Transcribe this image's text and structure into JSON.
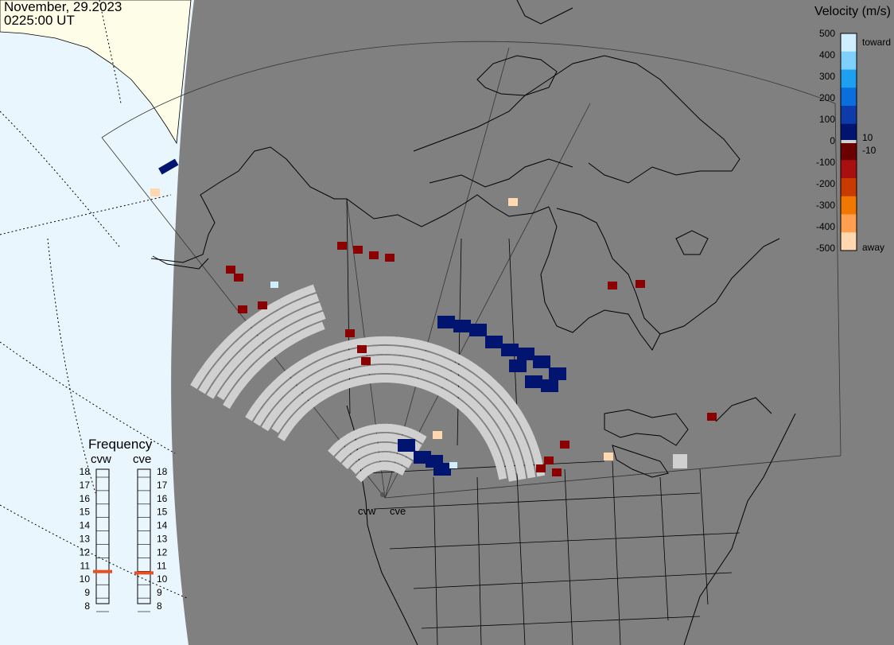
{
  "header": {
    "date": "November, 29.2023",
    "time": "0225:00 UT"
  },
  "colors": {
    "background": "#808080",
    "ocean": "#eaf6fd",
    "land_outside": "#fefee8",
    "ground_scatter": "#d0d0d0",
    "accent_marker": "#e85020"
  },
  "legend": {
    "title": "Velocity (m/s)",
    "ticks": [
      "500",
      "400",
      "300",
      "200",
      "100",
      "0",
      "-100",
      "-200",
      "-300",
      "-400",
      "-500"
    ],
    "label_toward": "toward",
    "label_away": "away",
    "label_plus_10": "10",
    "label_minus_10": "-10",
    "colors": [
      "#cfeeff",
      "#7fd0ff",
      "#1ea0f0",
      "#0a6edc",
      "#0d3caa",
      "#001470",
      "#6a0000",
      "#a81010",
      "#c83a00",
      "#f07800",
      "#ffa050",
      "#ffd8b0"
    ]
  },
  "frequency": {
    "title": "Frequency",
    "radars": [
      {
        "name": "cvw",
        "value": 10.8
      },
      {
        "name": "cve",
        "value": 10.7
      }
    ],
    "scale": [
      "18",
      "17",
      "16",
      "15",
      "14",
      "13",
      "12",
      "11",
      "10",
      "9",
      "8"
    ]
  },
  "radar_sites": [
    {
      "name": "cvw"
    },
    {
      "name": "cve"
    }
  ]
}
